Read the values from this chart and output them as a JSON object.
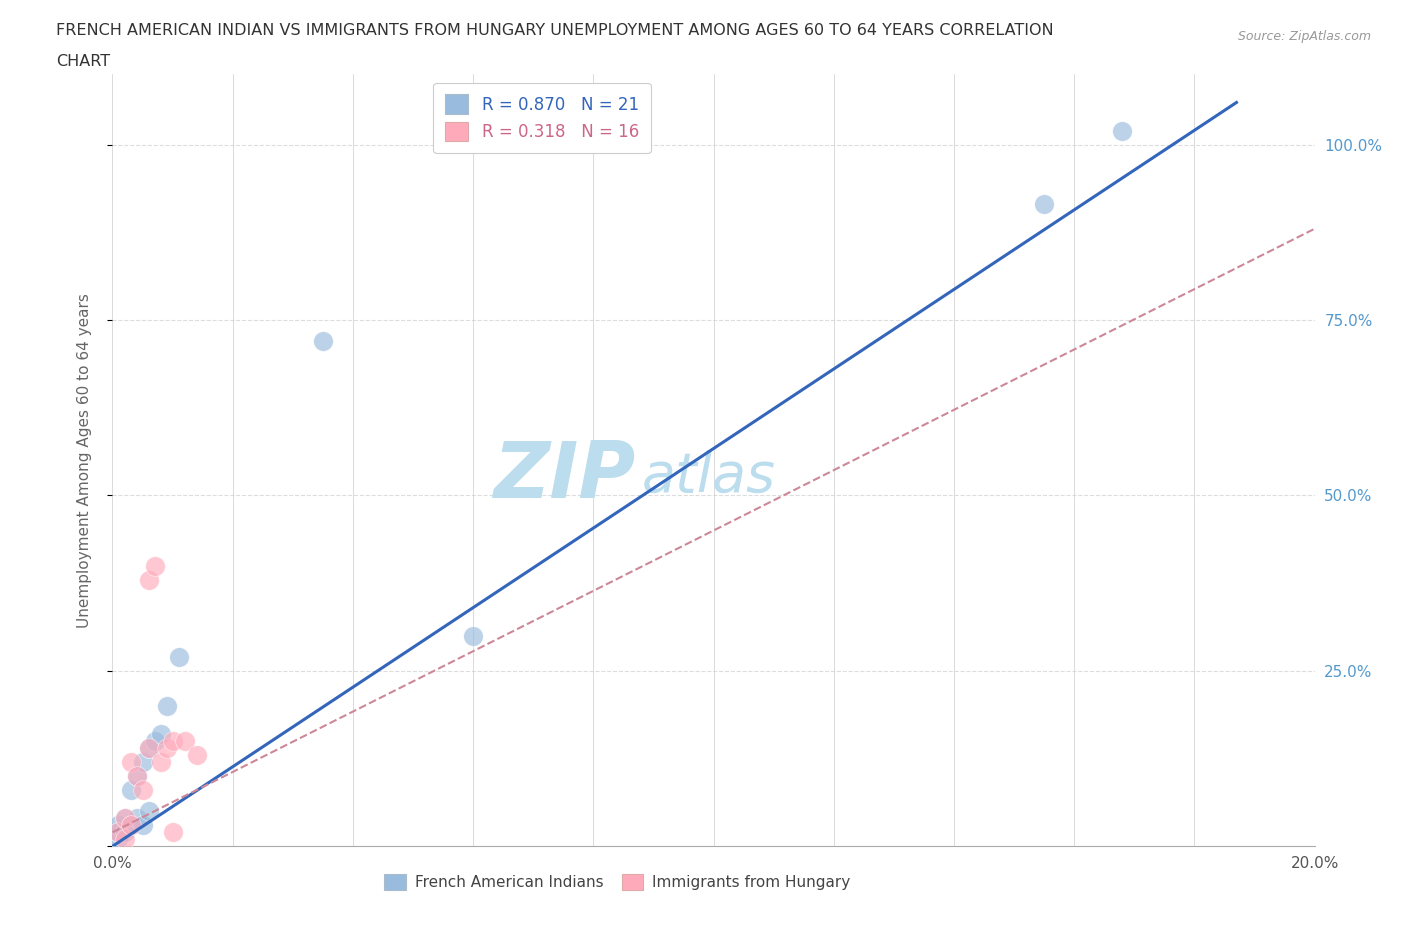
{
  "title_line1": "FRENCH AMERICAN INDIAN VS IMMIGRANTS FROM HUNGARY UNEMPLOYMENT AMONG AGES 60 TO 64 YEARS CORRELATION",
  "title_line2": "CHART",
  "source": "Source: ZipAtlas.com",
  "ylabel": "Unemployment Among Ages 60 to 64 years",
  "xlim": [
    0.0,
    0.2
  ],
  "ylim": [
    0.0,
    1.1
  ],
  "yticks": [
    0.0,
    0.25,
    0.5,
    0.75,
    1.0
  ],
  "ytick_labels": [
    "",
    "25.0%",
    "50.0%",
    "75.0%",
    "100.0%"
  ],
  "xticks": [
    0.0,
    0.02,
    0.04,
    0.06,
    0.08,
    0.1,
    0.12,
    0.14,
    0.16,
    0.18,
    0.2
  ],
  "xtick_labels": [
    "0.0%",
    "",
    "",
    "",
    "",
    "",
    "",
    "",
    "",
    "",
    "20.0%"
  ],
  "blue_scatter_x": [
    0.001,
    0.001,
    0.001,
    0.002,
    0.002,
    0.003,
    0.003,
    0.004,
    0.004,
    0.005,
    0.005,
    0.006,
    0.006,
    0.007,
    0.008,
    0.009,
    0.011,
    0.035,
    0.155,
    0.168,
    0.06
  ],
  "blue_scatter_y": [
    0.01,
    0.02,
    0.03,
    0.02,
    0.04,
    0.03,
    0.08,
    0.04,
    0.1,
    0.03,
    0.12,
    0.05,
    0.14,
    0.15,
    0.16,
    0.2,
    0.27,
    0.72,
    0.915,
    1.02,
    0.3
  ],
  "pink_scatter_x": [
    0.001,
    0.002,
    0.002,
    0.003,
    0.003,
    0.004,
    0.005,
    0.006,
    0.006,
    0.007,
    0.008,
    0.009,
    0.01,
    0.01,
    0.012,
    0.014
  ],
  "pink_scatter_y": [
    0.02,
    0.01,
    0.04,
    0.03,
    0.12,
    0.1,
    0.08,
    0.14,
    0.38,
    0.4,
    0.12,
    0.14,
    0.15,
    0.02,
    0.15,
    0.13
  ],
  "blue_line_x": [
    0.0,
    0.187
  ],
  "blue_line_y": [
    0.0,
    1.06
  ],
  "pink_line_x": [
    0.0,
    0.2
  ],
  "pink_line_y": [
    0.02,
    0.88
  ],
  "blue_color": "#99BBDD",
  "pink_color": "#FFAABB",
  "blue_line_color": "#3366BB",
  "pink_line_color": "#CC8899",
  "legend_R1": "R = 0.870",
  "legend_N1": "N = 21",
  "legend_R2": "R = 0.318",
  "legend_N2": "N = 16",
  "watermark_zip": "ZIP",
  "watermark_atlas": "atlas",
  "watermark_color": "#BBDDEE",
  "background_color": "#FFFFFF",
  "grid_color": "#DDDDDD"
}
